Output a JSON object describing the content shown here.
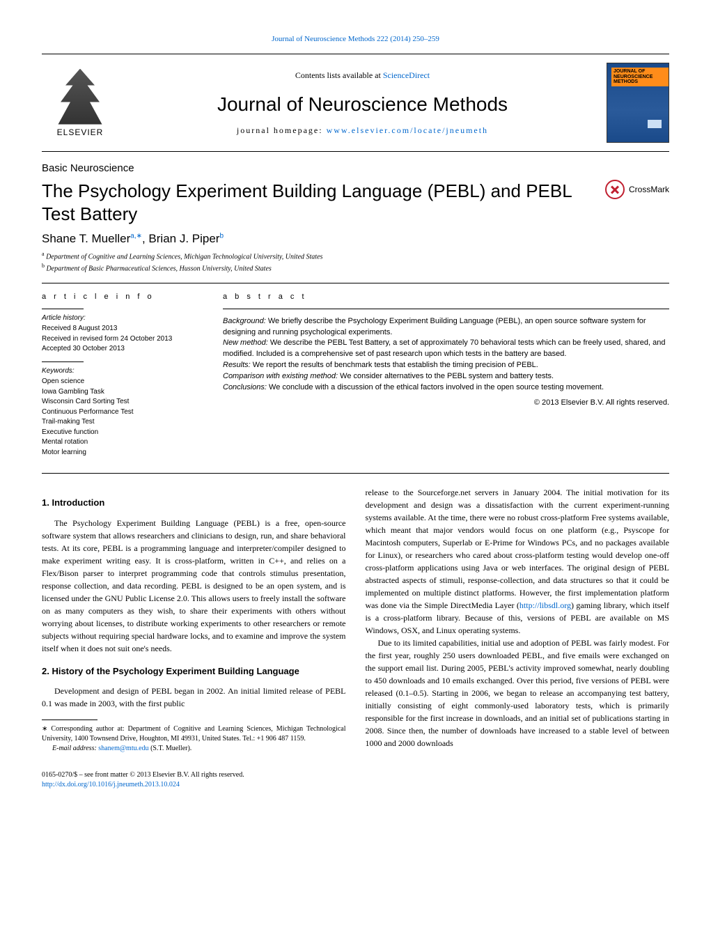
{
  "header_link": "Journal of Neuroscience Methods 222 (2014) 250–259",
  "masthead": {
    "publisher": "ELSEVIER",
    "contents_prefix": "Contents lists available at ",
    "contents_link": "ScienceDirect",
    "journal_name": "Journal of Neuroscience Methods",
    "homepage_prefix": "journal homepage: ",
    "homepage_url": "www.elsevier.com/locate/jneumeth",
    "cover_label": "JOURNAL OF\nNEUROSCIENCE\nMETHODS"
  },
  "section_label": "Basic Neuroscience",
  "article_title": "The Psychology Experiment Building Language (PEBL) and PEBL Test Battery",
  "crossmark_label": "CrossMark",
  "authors_html": "Shane T. Mueller",
  "author_a_sup": "a,∗",
  "author_b": ", Brian J. Piper",
  "author_b_sup": "b",
  "affiliations": {
    "a": "Department of Cognitive and Learning Sciences, Michigan Technological University, United States",
    "b": "Department of Basic Pharmaceutical Sciences, Husson University, United States"
  },
  "info": {
    "heading": "a r t i c l e   i n f o",
    "history_label": "Article history:",
    "received": "Received 8 August 2013",
    "revised": "Received in revised form 24 October 2013",
    "accepted": "Accepted 30 October 2013",
    "keywords_label": "Keywords:",
    "keywords": [
      "Open science",
      "Iowa Gambling Task",
      "Wisconsin Card Sorting Test",
      "Continuous Performance Test",
      "Trail-making Test",
      "Executive function",
      "Mental rotation",
      "Motor learning"
    ]
  },
  "abstract": {
    "heading": "a b s t r a c t",
    "background_label": "Background:",
    "background": " We briefly describe the Psychology Experiment Building Language (PEBL), an open source software system for designing and running psychological experiments.",
    "newmethod_label": "New method:",
    "newmethod": " We describe the PEBL Test Battery, a set of approximately 70 behavioral tests which can be freely used, shared, and modified. Included is a comprehensive set of past research upon which tests in the battery are based.",
    "results_label": "Results:",
    "results": " We report the results of benchmark tests that establish the timing precision of PEBL.",
    "comparison_label": "Comparison with existing method:",
    "comparison": " We consider alternatives to the PEBL system and battery tests.",
    "conclusions_label": "Conclusions:",
    "conclusions": " We conclude with a discussion of the ethical factors involved in the open source testing movement.",
    "copyright": "© 2013 Elsevier B.V. All rights reserved."
  },
  "body": {
    "h1": "1.  Introduction",
    "p1": "The Psychology Experiment Building Language (PEBL) is a free, open-source software system that allows researchers and clinicians to design, run, and share behavioral tests. At its core, PEBL is a programming language and interpreter/compiler designed to make experiment writing easy. It is cross-platform, written in C++, and relies on a Flex/Bison parser to interpret programming code that controls stimulus presentation, response collection, and data recording. PEBL is designed to be an open system, and is licensed under the GNU Public License 2.0. This allows users to freely install the software on as many computers as they wish, to share their experiments with others without worrying about licenses, to distribute working experiments to other researchers or remote subjects without requiring special hardware locks, and to examine and improve the system itself when it does not suit one's needs.",
    "h2": "2.  History of the Psychology Experiment Building Language",
    "p2": "Development and design of PEBL began in 2002. An initial limited release of PEBL 0.1 was made in 2003, with the first public",
    "fn_corr_label": "∗",
    "fn_corr": " Corresponding author at: Department of Cognitive and Learning Sciences, Michigan Technological University, 1400 Townsend Drive, Houghton, MI 49931, United States. Tel.: +1 906 487 1159.",
    "fn_email_label": "E-mail address: ",
    "fn_email": "shanem@mtu.edu",
    "fn_email_suffix": " (S.T. Mueller).",
    "p3a": "release to the Sourceforge.net servers in January 2004. The initial motivation for its development and design was a dissatisfaction with the current experiment-running systems available. At the time, there were no robust cross-platform Free systems available, which meant that major vendors would focus on one platform (e.g., Psyscope for Macintosh computers, Superlab or E-Prime for Windows PCs, and no packages available for Linux), or researchers who cared about cross-platform testing would develop one-off cross-platform applications using Java or web interfaces. The original design of PEBL abstracted aspects of stimuli, response-collection, and data structures so that it could be implemented on multiple distinct platforms. However, the first implementation platform was done via the Simple DirectMedia Layer (",
    "p3_link": "http://libsdl.org",
    "p3b": ") gaming library, which itself is a cross-platform library. Because of this, versions of PEBL are available on MS Windows, OSX, and Linux operating systems.",
    "p4": "Due to its limited capabilities, initial use and adoption of PEBL was fairly modest. For the first year, roughly 250 users downloaded PEBL, and five emails were exchanged on the support email list. During 2005, PEBL's activity improved somewhat, nearly doubling to 450 downloads and 10 emails exchanged. Over this period, five versions of PEBL were released (0.1–0.5). Starting in 2006, we began to release an accompanying test battery, initially consisting of eight commonly-used laboratory tests, which is primarily responsible for the first increase in downloads, and an initial set of publications starting in 2008. Since then, the number of downloads have increased to a stable level of between 1000 and 2000 downloads"
  },
  "footer": {
    "issn": "0165-0270/$ – see front matter © 2013 Elsevier B.V. All rights reserved.",
    "doi": "http://dx.doi.org/10.1016/j.jneumeth.2013.10.024"
  }
}
